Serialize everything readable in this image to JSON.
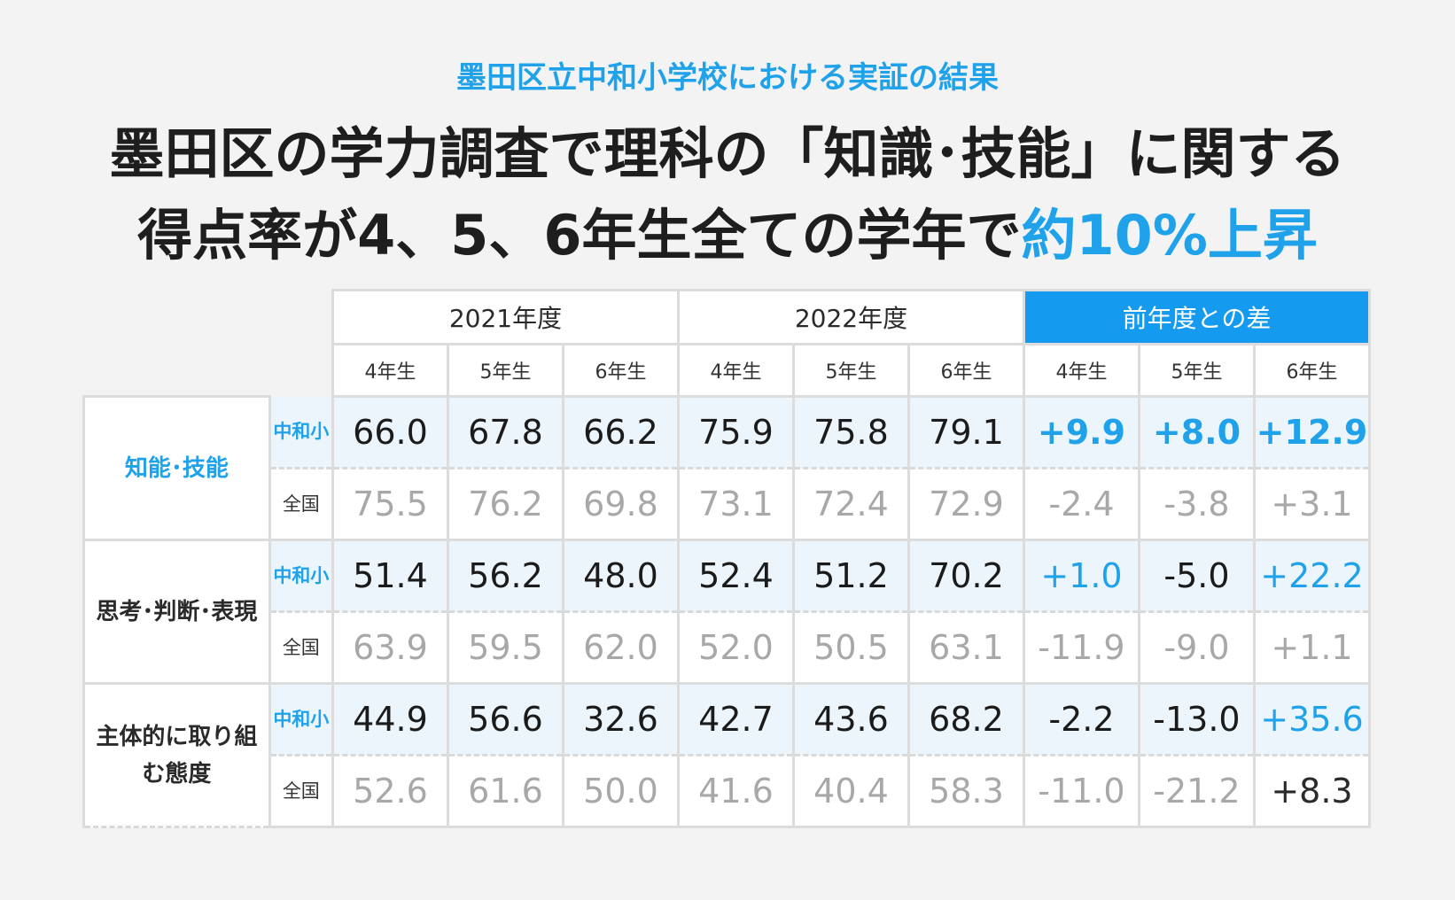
{
  "subtitle": "墨田区立中和小学校における実証の結果",
  "title": {
    "line1": "墨田区の学力調査で理科の「知識･技能」に関する",
    "line2_prefix": "得点率が4、5、6年生全ての学年で",
    "line2_highlight": "約10%上昇"
  },
  "headers": {
    "year2021": "2021年度",
    "year2022": "2022年度",
    "diff": "前年度との差",
    "grades": [
      "4年生",
      "5年生",
      "6年生",
      "4年生",
      "5年生",
      "6年生",
      "4年生",
      "5年生",
      "6年生"
    ]
  },
  "row_labels": {
    "school": "中和小",
    "national": "全国"
  },
  "colors": {
    "accent": "#1fa2ea",
    "diff_header": "#149aee",
    "school_bg": "#ecf5fc",
    "national_text": "#a8a8a8"
  },
  "chart_data": {
    "type": "table",
    "title": "",
    "columns": [
      "2021年度 4年生",
      "2021年度 5年生",
      "2021年度 6年生",
      "2022年度 4年生",
      "2022年度 5年生",
      "2022年度 6年生",
      "前年度との差 4年生",
      "前年度との差 5年生",
      "前年度との差 6年生"
    ],
    "categories": [
      {
        "name": "知能･技能",
        "school": [
          "66.0",
          "67.8",
          "66.2",
          "75.9",
          "75.8",
          "79.1",
          "+9.9",
          "+8.0",
          "+12.9"
        ],
        "national": [
          "75.5",
          "76.2",
          "69.8",
          "73.1",
          "72.4",
          "72.9",
          "-2.4",
          "-3.8",
          "+3.1"
        ]
      },
      {
        "name": "思考･判断･表現",
        "school": [
          "51.4",
          "56.2",
          "48.0",
          "52.4",
          "51.2",
          "70.2",
          "+1.0",
          "-5.0",
          "+22.2"
        ],
        "national": [
          "63.9",
          "59.5",
          "62.0",
          "52.0",
          "50.5",
          "63.1",
          "-11.9",
          "-9.0",
          "+1.1"
        ]
      },
      {
        "name": "主体的に取り組む態度",
        "school": [
          "44.9",
          "56.6",
          "32.6",
          "42.7",
          "43.6",
          "68.2",
          "-2.2",
          "-13.0",
          "+35.6"
        ],
        "national": [
          "52.6",
          "61.6",
          "50.0",
          "41.6",
          "40.4",
          "58.3",
          "-11.0",
          "-21.2",
          "+8.3"
        ]
      }
    ]
  }
}
